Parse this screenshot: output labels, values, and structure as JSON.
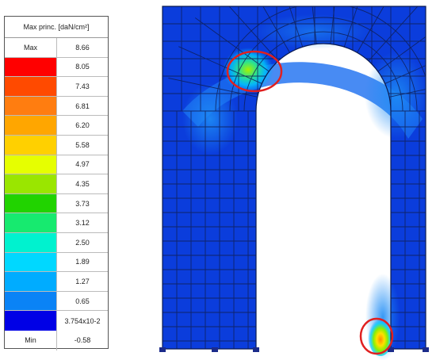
{
  "legend": {
    "title": "Max princ. [daN/cm²]",
    "max_label": "Max",
    "max_value": "8.66",
    "min_label": "Min",
    "min_value": "-0.58",
    "bands": [
      {
        "value": "8.05",
        "color": "#ff0000"
      },
      {
        "value": "7.43",
        "color": "#ff4a00"
      },
      {
        "value": "6.81",
        "color": "#ff7d10"
      },
      {
        "value": "6.20",
        "color": "#ffa600"
      },
      {
        "value": "5.58",
        "color": "#ffd000"
      },
      {
        "value": "4.97",
        "color": "#e6ff00"
      },
      {
        "value": "4.35",
        "color": "#9ae600"
      },
      {
        "value": "3.73",
        "color": "#21d300"
      },
      {
        "value": "3.12",
        "color": "#17ea6f"
      },
      {
        "value": "2.50",
        "color": "#00f2cf"
      },
      {
        "value": "1.89",
        "color": "#00d8ff"
      },
      {
        "value": "1.27",
        "color": "#00acff"
      },
      {
        "value": "0.65",
        "color": "#0a83f6"
      },
      {
        "value": "3.754x10-2",
        "color": "#0000e6"
      }
    ]
  }
}
